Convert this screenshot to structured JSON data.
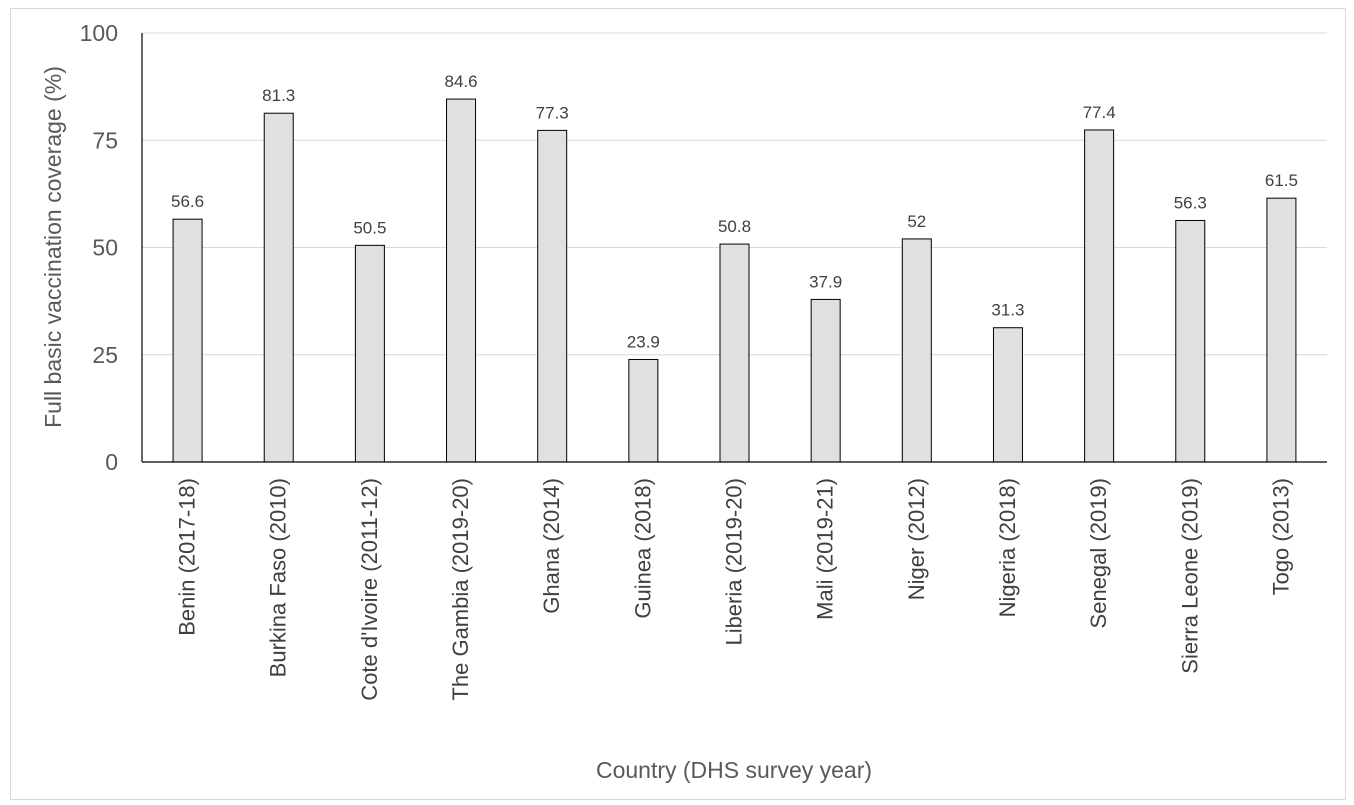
{
  "chart_data": {
    "type": "bar",
    "categories": [
      "Benin (2017-18)",
      "Burkina Faso (2010)",
      "Cote d'Ivoire (2011-12)",
      "The Gambia (2019-20)",
      "Ghana (2014)",
      "Guinea (2018)",
      "Liberia (2019-20)",
      "Mali (2019-21)",
      "Niger (2012)",
      "Nigeria (2018)",
      "Senegal (2019)",
      "Sierra Leone (2019)",
      "Togo (2013)"
    ],
    "values": [
      56.6,
      81.3,
      50.5,
      84.6,
      77.3,
      23.9,
      50.8,
      37.9,
      52,
      31.3,
      77.4,
      56.3,
      61.5
    ],
    "data_labels": [
      "56.6",
      "81.3",
      "50.5",
      "84.6",
      "77.3",
      "23.9",
      "50.8",
      "37.9",
      "52",
      "31.3",
      "77.4",
      "56.3",
      "61.5"
    ],
    "title": "",
    "xlabel": "Country (DHS survey year)",
    "ylabel": "Full basic vaccination coverage (%)",
    "ylim": [
      0,
      100
    ],
    "yticks": [
      0,
      25,
      50,
      75,
      100
    ],
    "ytick_labels": [
      "0",
      "25",
      "50",
      "75",
      "100"
    ],
    "grid": true,
    "legend": "none",
    "colors": {
      "bar_fill": "#e0e0e0",
      "bar_stroke": "#000000",
      "grid": "#d9d9d9",
      "axis": "#000000"
    }
  }
}
